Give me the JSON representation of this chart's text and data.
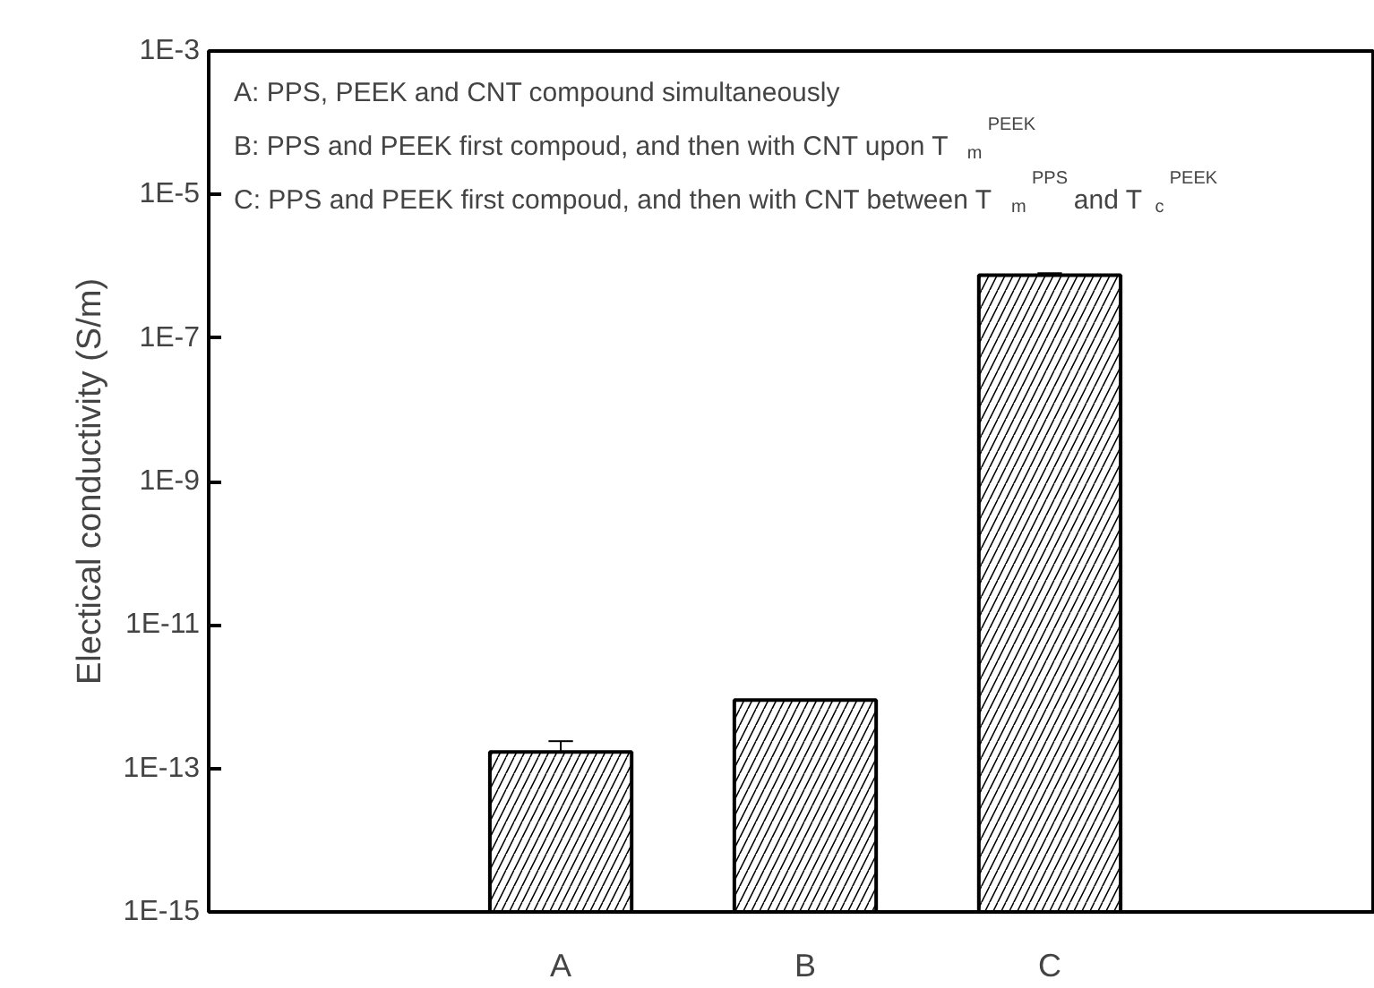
{
  "chart_data": {
    "type": "bar",
    "ylabel": "Electical conductivity (S/m)",
    "categories": [
      "A",
      "B",
      "C"
    ],
    "series": [
      {
        "color": "#000000",
        "values": [
          1.7e-13,
          9e-13,
          7.5e-07
        ],
        "errors": [
          [
            1.7e-13,
            2.4e-13
          ],
          null,
          [
            7.5e-07,
            8e-07
          ]
        ]
      }
    ],
    "log": "y",
    "ylim": [
      1e-15,
      0.001
    ],
    "yticks": [
      {
        "value": 1e-15,
        "label": "1E-15"
      },
      {
        "value": 1e-13,
        "label": "1E-13"
      },
      {
        "value": 1e-11,
        "label": "1E-11"
      },
      {
        "value": 1e-09,
        "label": "1E-9"
      },
      {
        "value": 1e-07,
        "label": "1E-7"
      },
      {
        "value": 1e-05,
        "label": "1E-5"
      },
      {
        "value": 0.001,
        "label": "1E-3"
      }
    ],
    "grid": false,
    "annotations": [
      "A: PPS, PEEK and CNT compound simultaneously",
      "B: PPS and PEEK first compoud, and then with CNT upon T$_{m}$$^{PEEK}$",
      "C: PPS and PEEK first compoud, and then with CNT between T$_{m}$$^{PPS}$ and T$_{c}$$^{PEEK}$"
    ]
  }
}
